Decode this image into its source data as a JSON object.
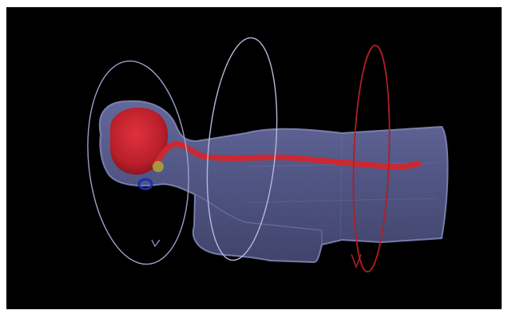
{
  "scene": {
    "background_color": "#000000",
    "frame_color": "#ffffff",
    "body_color": "#5a5f91",
    "body_edge_color": "#7c82b8",
    "brain_color": "#cc2430",
    "spinal_cord_color": "#cf2a35",
    "yellow_marker_color": "#a8a23a",
    "blue_marker_color": "#1b2fb0",
    "ring_head_color": "#9aa0c8",
    "ring_chest_color": "#b5b9d8",
    "ring_red_color": "#b01f24"
  }
}
